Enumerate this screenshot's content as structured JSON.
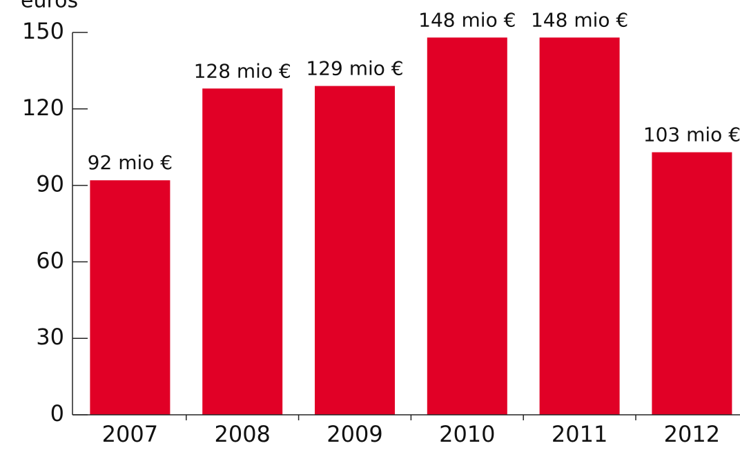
{
  "chart_data": {
    "type": "bar",
    "y_label": "euros",
    "categories": [
      "2007",
      "2008",
      "2009",
      "2010",
      "2011",
      "2012"
    ],
    "values": [
      92,
      128,
      129,
      148,
      148,
      103
    ],
    "value_labels": [
      "92 mio €",
      "128 mio €",
      "129 mio €",
      "148 mio €",
      "148 mio €",
      "103 mio €"
    ],
    "color": "#e10026",
    "ylim": [
      0,
      150
    ],
    "yticks": [
      0,
      30,
      60,
      90,
      120,
      150
    ],
    "grid": false
  }
}
